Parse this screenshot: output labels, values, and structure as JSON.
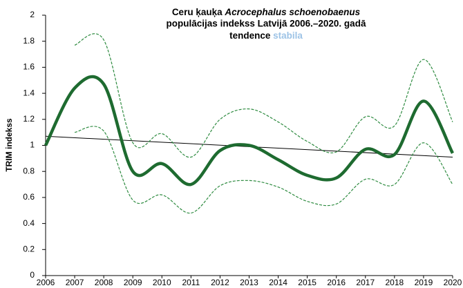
{
  "chart_data": {
    "type": "line",
    "title": {
      "name": "Ceru ķauķa",
      "species": "Acrocephalus schoenobaenus",
      "line2": "populācijas indekss Latvijā 2006.–2020. gadā",
      "trend_label": "tendence",
      "trend_value": "stabila"
    },
    "y_label": "TRIM indekss",
    "x": [
      2006,
      2007,
      2008,
      2009,
      2010,
      2011,
      2012,
      2013,
      2014,
      2015,
      2016,
      2017,
      2018,
      2019,
      2020
    ],
    "series": [
      {
        "color": "#1e6b30",
        "values": [
          1.0,
          1.44,
          1.47,
          0.8,
          0.86,
          0.7,
          0.96,
          1.0,
          0.89,
          0.77,
          0.75,
          0.97,
          0.93,
          1.34,
          0.94
        ]
      },
      {
        "color": "#2e8b40",
        "values": [
          null,
          1.77,
          1.81,
          1.02,
          1.09,
          0.91,
          1.2,
          1.28,
          1.18,
          1.03,
          0.95,
          1.22,
          1.15,
          1.66,
          1.18
        ]
      },
      {
        "color": "#2e8b40",
        "values": [
          null,
          1.1,
          1.11,
          0.58,
          0.62,
          0.48,
          0.69,
          0.73,
          0.68,
          0.57,
          0.55,
          0.74,
          0.7,
          1.02,
          0.7
        ]
      }
    ],
    "trend": {
      "x": [
        2006,
        2020
      ],
      "values": [
        1.07,
        0.91
      ],
      "color": "#000000"
    },
    "trend_value_color": "#9dc3e6",
    "xlim": [
      2006,
      2020
    ],
    "xticks": [
      2006,
      2007,
      2008,
      2009,
      2010,
      2011,
      2012,
      2013,
      2014,
      2015,
      2016,
      2017,
      2018,
      2019,
      2020
    ],
    "ylim": [
      0,
      2
    ],
    "yticks": [
      0,
      0.2,
      0.4,
      0.6,
      0.8,
      1,
      1.2,
      1.4,
      1.6,
      1.8,
      2
    ],
    "grid": false
  }
}
